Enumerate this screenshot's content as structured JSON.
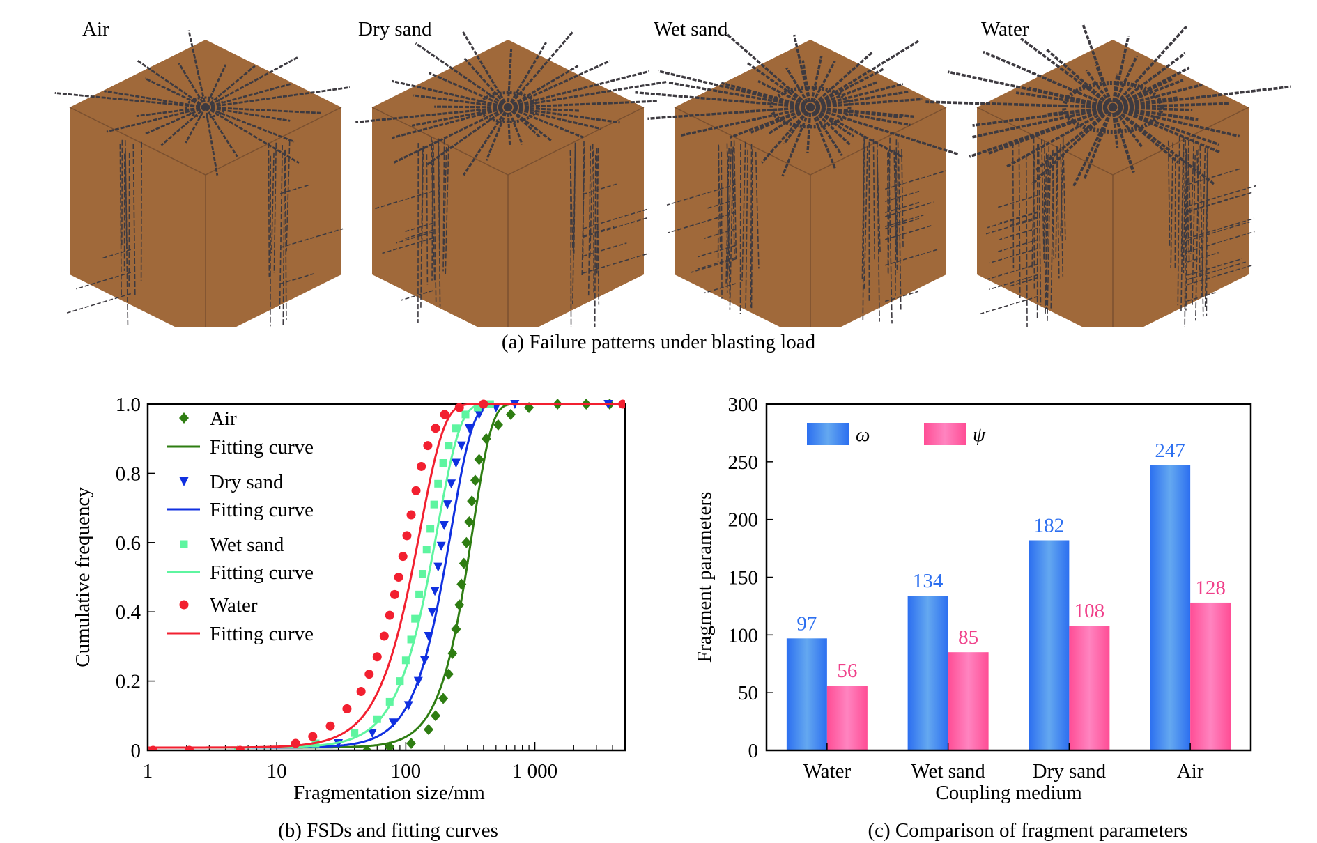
{
  "panel_a": {
    "caption": "(a) Failure patterns under blasting load",
    "cubes": [
      {
        "label": "Air",
        "crack_density": 1
      },
      {
        "label": "Dry sand",
        "crack_density": 2
      },
      {
        "label": "Wet sand",
        "crack_density": 3
      },
      {
        "label": "Water",
        "crack_density": 4
      }
    ],
    "colors": {
      "face": "#a0693a",
      "crack": "#3d3a40",
      "edge": "#7a5030"
    }
  },
  "chart_data": [
    {
      "id": "b",
      "type": "line",
      "caption": "(b) FSDs and fitting curves",
      "xlabel": "Fragmentation size/mm",
      "ylabel": "Cumulative frequency",
      "xscale": "log",
      "xlim": [
        1,
        5000
      ],
      "ylim": [
        0,
        1.0
      ],
      "xticks": [
        1,
        10,
        100,
        1000
      ],
      "xtick_labels": [
        "1",
        "10",
        "100",
        "1 000"
      ],
      "yticks": [
        0,
        0.2,
        0.4,
        0.6,
        0.8,
        1.0
      ],
      "ytick_labels": [
        "0",
        "0.2",
        "0.4",
        "0.6",
        "0.8",
        "1.0"
      ],
      "legend_position": "top-left",
      "fit_label": "Fitting curve",
      "series": [
        {
          "name": "Air",
          "marker": "diamond",
          "color": "#2e7d12",
          "fit_x50": 290,
          "fit_n": 2.9,
          "points": [
            [
              50,
              0.0
            ],
            [
              75,
              0.01
            ],
            [
              110,
              0.02
            ],
            [
              150,
              0.06
            ],
            [
              170,
              0.1
            ],
            [
              195,
              0.15
            ],
            [
              215,
              0.22
            ],
            [
              230,
              0.28
            ],
            [
              245,
              0.35
            ],
            [
              260,
              0.42
            ],
            [
              270,
              0.48
            ],
            [
              282,
              0.54
            ],
            [
              295,
              0.6
            ],
            [
              310,
              0.66
            ],
            [
              325,
              0.72
            ],
            [
              345,
              0.78
            ],
            [
              370,
              0.84
            ],
            [
              420,
              0.9
            ],
            [
              520,
              0.94
            ],
            [
              650,
              0.97
            ],
            [
              900,
              0.99
            ],
            [
              1500,
              1.0
            ],
            [
              2500,
              1.0
            ],
            [
              3800,
              1.0
            ]
          ]
        },
        {
          "name": "Dry sand",
          "marker": "triangle-down",
          "color": "#1030e0",
          "fit_x50": 195,
          "fit_n": 2.6,
          "points": [
            [
              30,
              0.02
            ],
            [
              55,
              0.05
            ],
            [
              80,
              0.08
            ],
            [
              105,
              0.13
            ],
            [
              125,
              0.2
            ],
            [
              140,
              0.26
            ],
            [
              150,
              0.33
            ],
            [
              160,
              0.4
            ],
            [
              168,
              0.46
            ],
            [
              178,
              0.53
            ],
            [
              188,
              0.59
            ],
            [
              198,
              0.65
            ],
            [
              210,
              0.71
            ],
            [
              225,
              0.77
            ],
            [
              245,
              0.83
            ],
            [
              270,
              0.88
            ],
            [
              310,
              0.93
            ],
            [
              370,
              0.97
            ],
            [
              500,
              0.99
            ],
            [
              700,
              1.0
            ],
            [
              3700,
              1.0
            ]
          ]
        },
        {
          "name": "Wet sand",
          "marker": "square",
          "color": "#5ef5a0",
          "fit_x50": 150,
          "fit_n": 2.4,
          "points": [
            [
              5,
              0.0
            ],
            [
              20,
              0.02
            ],
            [
              40,
              0.05
            ],
            [
              60,
              0.09
            ],
            [
              75,
              0.14
            ],
            [
              90,
              0.2
            ],
            [
              100,
              0.26
            ],
            [
              110,
              0.32
            ],
            [
              118,
              0.38
            ],
            [
              127,
              0.45
            ],
            [
              135,
              0.51
            ],
            [
              145,
              0.58
            ],
            [
              155,
              0.64
            ],
            [
              166,
              0.71
            ],
            [
              178,
              0.77
            ],
            [
              195,
              0.83
            ],
            [
              215,
              0.88
            ],
            [
              245,
              0.93
            ],
            [
              290,
              0.97
            ],
            [
              360,
              0.99
            ],
            [
              450,
              1.0
            ]
          ]
        },
        {
          "name": "Water",
          "marker": "circle",
          "color": "#f22030",
          "fit_x50": 110,
          "fit_n": 2.3,
          "points": [
            [
              1.1,
              0.0
            ],
            [
              2.1,
              0.0
            ],
            [
              5.2,
              0.0
            ],
            [
              14,
              0.02
            ],
            [
              19,
              0.04
            ],
            [
              26,
              0.07
            ],
            [
              35,
              0.12
            ],
            [
              45,
              0.17
            ],
            [
              52,
              0.22
            ],
            [
              60,
              0.27
            ],
            [
              68,
              0.33
            ],
            [
              75,
              0.39
            ],
            [
              82,
              0.45
            ],
            [
              88,
              0.5
            ],
            [
              95,
              0.56
            ],
            [
              102,
              0.62
            ],
            [
              110,
              0.68
            ],
            [
              120,
              0.75
            ],
            [
              132,
              0.82
            ],
            [
              148,
              0.88
            ],
            [
              170,
              0.93
            ],
            [
              200,
              0.97
            ],
            [
              260,
              0.99
            ],
            [
              400,
              1.0
            ],
            [
              4800,
              1.0
            ]
          ]
        }
      ]
    },
    {
      "id": "c",
      "type": "bar",
      "caption": "(c) Comparison of fragment parameters",
      "xlabel": "Coupling medium",
      "ylabel": "Fragment parameters",
      "ylim": [
        0,
        300
      ],
      "yticks": [
        0,
        50,
        100,
        150,
        200,
        250,
        300
      ],
      "categories": [
        "Water",
        "Wet sand",
        "Dry sand",
        "Air"
      ],
      "legend_position": "top-left",
      "series": [
        {
          "name": "ω",
          "color": "#2c6ff0",
          "light": "#64a8f0",
          "label_color": "#2c6ff0",
          "values": [
            97,
            134,
            182,
            247
          ]
        },
        {
          "name": "ψ",
          "color": "#ff4d95",
          "light": "#ff84c0",
          "label_color": "#f0408a",
          "values": [
            56,
            85,
            108,
            128
          ]
        }
      ]
    }
  ]
}
